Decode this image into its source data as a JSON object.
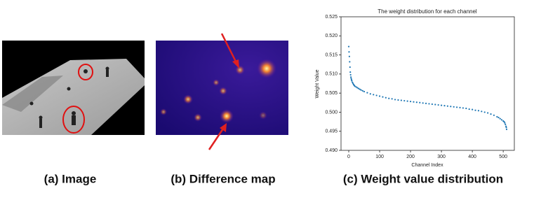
{
  "captions": [
    "(a)  Image",
    "(b)  Difference map",
    "(c)  Weight value distribution"
  ],
  "chart_data": {
    "type": "scatter",
    "title": "The weight distribution for each channel",
    "x_label": "Channel Index",
    "y_label": "Weight Value",
    "color": "#1f77b4",
    "x": [
      0,
      1,
      2,
      3,
      4,
      5,
      6,
      7,
      8,
      9,
      10,
      12,
      14,
      16,
      18,
      20,
      24,
      28,
      32,
      36,
      40,
      45,
      50,
      60,
      70,
      80,
      90,
      100,
      110,
      120,
      130,
      140,
      150,
      160,
      170,
      180,
      190,
      200,
      210,
      220,
      230,
      240,
      250,
      260,
      270,
      280,
      290,
      300,
      310,
      320,
      330,
      340,
      350,
      360,
      370,
      380,
      390,
      400,
      410,
      420,
      430,
      440,
      450,
      460,
      470,
      480,
      485,
      490,
      495,
      500,
      503,
      505,
      507,
      509,
      510,
      511
    ],
    "values": [
      0.5172,
      0.5158,
      0.5146,
      0.5132,
      0.5118,
      0.5105,
      0.5098,
      0.5092,
      0.5088,
      0.5085,
      0.5082,
      0.5078,
      0.5075,
      0.5072,
      0.507,
      0.5068,
      0.5066,
      0.5064,
      0.5062,
      0.506,
      0.5058,
      0.5056,
      0.5054,
      0.5051,
      0.5048,
      0.5046,
      0.5044,
      0.5042,
      0.504,
      0.5038,
      0.5036,
      0.5035,
      0.5033,
      0.5032,
      0.5031,
      0.503,
      0.5029,
      0.5028,
      0.5027,
      0.5026,
      0.5025,
      0.5024,
      0.5023,
      0.5022,
      0.5021,
      0.502,
      0.5019,
      0.5018,
      0.5017,
      0.5016,
      0.5015,
      0.5014,
      0.5013,
      0.5012,
      0.5011,
      0.501,
      0.5008,
      0.5007,
      0.5005,
      0.5004,
      0.5002,
      0.5,
      0.4998,
      0.4995,
      0.4992,
      0.4988,
      0.4986,
      0.4983,
      0.498,
      0.4977,
      0.4975,
      0.4972,
      0.4968,
      0.4963,
      0.496,
      0.4955
    ],
    "xlim": [
      -25,
      536
    ],
    "xticks": [
      0,
      100,
      200,
      300,
      400,
      500
    ],
    "ylim": [
      0.49,
      0.525
    ],
    "yticks": [
      {
        "value": 0.49,
        "label": "0.490"
      },
      0.495,
      {
        "value": 0.5,
        "label": "0.500"
      },
      0.505,
      {
        "value": 0.51,
        "label": "0.510"
      },
      0.515,
      {
        "value": 0.52,
        "label": "0.520"
      },
      0.525
    ]
  }
}
